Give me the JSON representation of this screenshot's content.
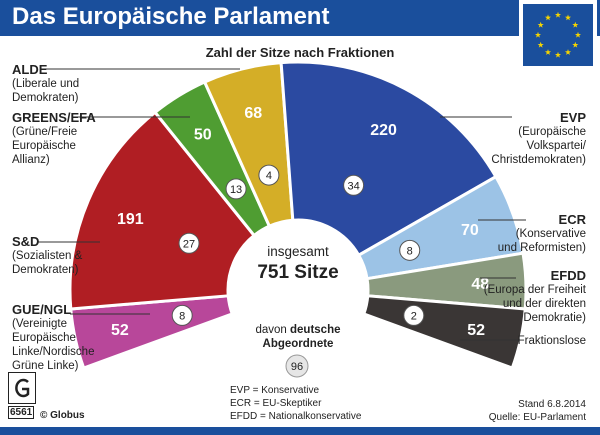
{
  "title": "Das Europäische Parlament",
  "subtitle": "Zahl der Sitze nach Fraktionen",
  "center": {
    "line1": "insgesamt",
    "line2": "751 Sitze"
  },
  "nonattached_note": {
    "prefix": "davon ",
    "bold1": "deutsche",
    "bold2": "Abgeordnete"
  },
  "footnotes": [
    "EVP = Konservative",
    "ECR = EU-Skeptiker",
    "EFDD = Nationalkonservative"
  ],
  "stand": "Stand 6.8.2014",
  "source": "Quelle: EU-Parlament",
  "logo_code": "6561",
  "agency": "© Globus",
  "colors": {
    "header": "#1a4f9c",
    "GUE/NGL": "#b8479a",
    "S&D": "#b01e23",
    "GREENS/EFA": "#4f9d32",
    "ALDE": "#d4ae27",
    "EVP": "#2b4aa1",
    "ECR": "#9cc3e6",
    "EFDD": "#8a9a7e",
    "Fraktionslose": "#3a3635"
  },
  "labels": [
    {
      "key": "alde",
      "name": "ALDE",
      "desc": [
        "(Liberale und",
        "Demokraten)"
      ]
    },
    {
      "key": "greens",
      "name": "GREENS/EFA",
      "desc": [
        "(Grüne/Freie",
        "Europäische",
        "Allianz)"
      ]
    },
    {
      "key": "sd",
      "name": "S&D",
      "desc": [
        "(Sozialisten &",
        "Demokraten)"
      ]
    },
    {
      "key": "gue",
      "name": "GUE/NGL",
      "desc": [
        "(Vereinigte",
        "Europäische",
        "Linke/Nordische",
        "Grüne Linke)"
      ]
    },
    {
      "key": "evp",
      "name": "EVP",
      "desc": [
        "(Europäische",
        "Volkspartei/",
        "Christdemokraten)"
      ]
    },
    {
      "key": "ecr",
      "name": "ECR",
      "desc": [
        "(Konservative",
        "und Reformisten)"
      ]
    },
    {
      "key": "efdd",
      "name": "EFDD",
      "desc": [
        "(Europa der Freiheit",
        "und der direkten",
        "Demokratie)"
      ]
    },
    {
      "key": "fl",
      "name": "",
      "desc": [
        "Fraktionslose"
      ]
    }
  ],
  "chart_data": {
    "type": "pie",
    "style": "parliament semicircle (hemicycle)",
    "title": "Zahl der Sitze nach Fraktionen",
    "total_seats": 751,
    "categories": [
      "GUE/NGL",
      "S&D",
      "GREENS/EFA",
      "ALDE",
      "EVP",
      "ECR",
      "EFDD",
      "Fraktionslose"
    ],
    "series": [
      {
        "name": "Sitze",
        "values": [
          52,
          191,
          50,
          68,
          220,
          70,
          48,
          52
        ]
      },
      {
        "name": "deutsche Abgeordnete",
        "values": [
          8,
          27,
          13,
          4,
          34,
          8,
          null,
          2
        ]
      }
    ],
    "german_nonattached_total": 96
  }
}
